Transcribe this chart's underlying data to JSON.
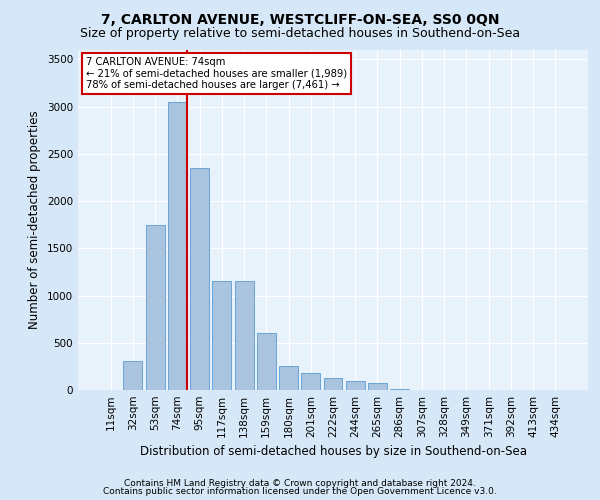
{
  "title": "7, CARLTON AVENUE, WESTCLIFF-ON-SEA, SS0 0QN",
  "subtitle": "Size of property relative to semi-detached houses in Southend-on-Sea",
  "xlabel": "Distribution of semi-detached houses by size in Southend-on-Sea",
  "ylabel": "Number of semi-detached properties",
  "footnote1": "Contains HM Land Registry data © Crown copyright and database right 2024.",
  "footnote2": "Contains public sector information licensed under the Open Government Licence v3.0.",
  "categories": [
    "11sqm",
    "32sqm",
    "53sqm",
    "74sqm",
    "95sqm",
    "117sqm",
    "138sqm",
    "159sqm",
    "180sqm",
    "201sqm",
    "222sqm",
    "244sqm",
    "265sqm",
    "286sqm",
    "307sqm",
    "328sqm",
    "349sqm",
    "371sqm",
    "392sqm",
    "413sqm",
    "434sqm"
  ],
  "values": [
    5,
    305,
    1750,
    3050,
    2350,
    1150,
    1150,
    600,
    250,
    175,
    125,
    100,
    75,
    10,
    0,
    0,
    0,
    0,
    0,
    0,
    0
  ],
  "bar_color": "#aac4e0",
  "bar_edge_color": "#5b9bd5",
  "red_line_index": 3,
  "annotation_text": "7 CARLTON AVENUE: 74sqm\n← 21% of semi-detached houses are smaller (1,989)\n78% of semi-detached houses are larger (7,461) →",
  "ylim": [
    0,
    3600
  ],
  "yticks": [
    0,
    500,
    1000,
    1500,
    2000,
    2500,
    3000,
    3500
  ],
  "bg_color": "#d6e8f7",
  "plot_bg_color": "#e8f2fb",
  "red_line_color": "#cc0000",
  "annotation_box_color": "#cc0000",
  "title_fontsize": 10,
  "subtitle_fontsize": 9,
  "axis_label_fontsize": 8.5,
  "tick_fontsize": 7.5,
  "footnote_fontsize": 6.5
}
